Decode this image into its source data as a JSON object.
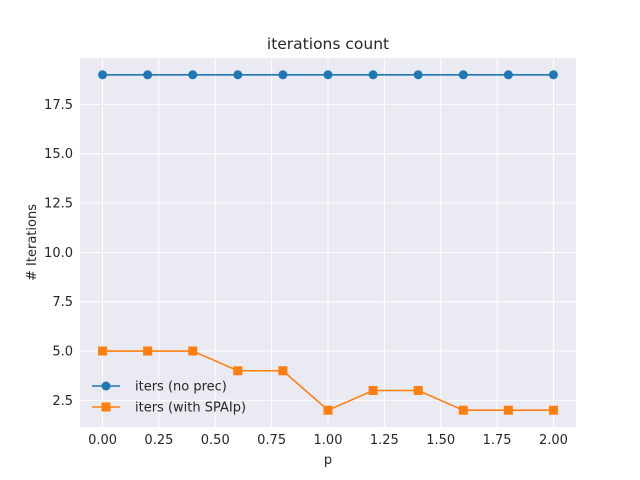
{
  "chart_data": {
    "type": "line",
    "title": "iterations count",
    "xlabel": "p",
    "ylabel": "# Iterations",
    "x": [
      0.0,
      0.2,
      0.4,
      0.6,
      0.8,
      1.0,
      1.2,
      1.4,
      1.6,
      1.8,
      2.0
    ],
    "xlim": [
      -0.1,
      2.1
    ],
    "ylim": [
      1.15,
      19.85
    ],
    "x_ticks": [
      "0.00",
      "0.25",
      "0.50",
      "0.75",
      "1.00",
      "1.25",
      "1.50",
      "1.75",
      "2.00"
    ],
    "x_tick_values": [
      0,
      0.25,
      0.5,
      0.75,
      1.0,
      1.25,
      1.5,
      1.75,
      2.0
    ],
    "y_ticks": [
      "2.5",
      "5.0",
      "7.5",
      "10.0",
      "12.5",
      "15.0",
      "17.5"
    ],
    "y_tick_values": [
      2.5,
      5.0,
      7.5,
      10.0,
      12.5,
      15.0,
      17.5
    ],
    "grid": true,
    "legend_position": "lower-left",
    "background": "#eaeaf2",
    "series": [
      {
        "name": "iters (no prec)",
        "color": "#1f77b4",
        "marker": "circle",
        "values": [
          19,
          19,
          19,
          19,
          19,
          19,
          19,
          19,
          19,
          19,
          19
        ]
      },
      {
        "name": "iters (with SPAIp)",
        "color": "#ff7f0e",
        "marker": "square",
        "values": [
          5,
          5,
          5,
          4,
          4,
          2,
          3,
          3,
          2,
          2,
          2
        ]
      }
    ]
  }
}
